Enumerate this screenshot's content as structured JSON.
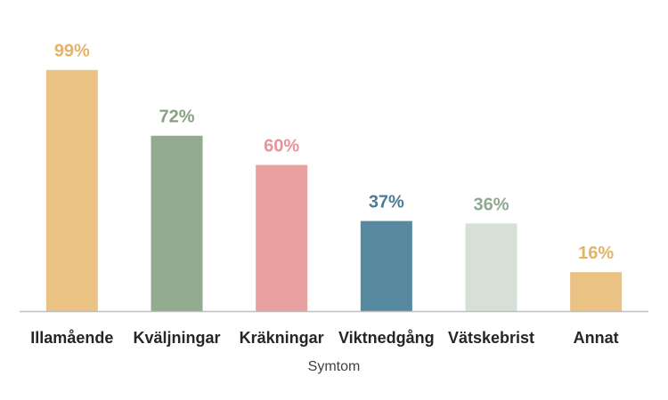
{
  "chart_data": {
    "type": "bar",
    "title": "",
    "xlabel": "Symtom",
    "ylabel": "",
    "ylim": [
      0,
      100
    ],
    "grid": false,
    "legend": "none",
    "categories": [
      "Illamående",
      "Kväljningar",
      "Kräkningar",
      "Viktnedgång",
      "Vätskebrist",
      "Annat"
    ],
    "values": [
      99,
      72,
      60,
      37,
      36,
      16
    ],
    "data_labels": [
      "99%",
      "72%",
      "60%",
      "37%",
      "36%",
      "16%"
    ],
    "colors": [
      "#E9C284",
      "#92AA8F",
      "#E8A0A1",
      "#56899F",
      "#D6E0D7",
      "#E9C284"
    ],
    "label_colors": [
      "#E3B36A",
      "#88A183",
      "#E79597",
      "#4B7C95",
      "#8FA88E",
      "#E3B36A"
    ],
    "axis_color": "#BFBFBF"
  }
}
